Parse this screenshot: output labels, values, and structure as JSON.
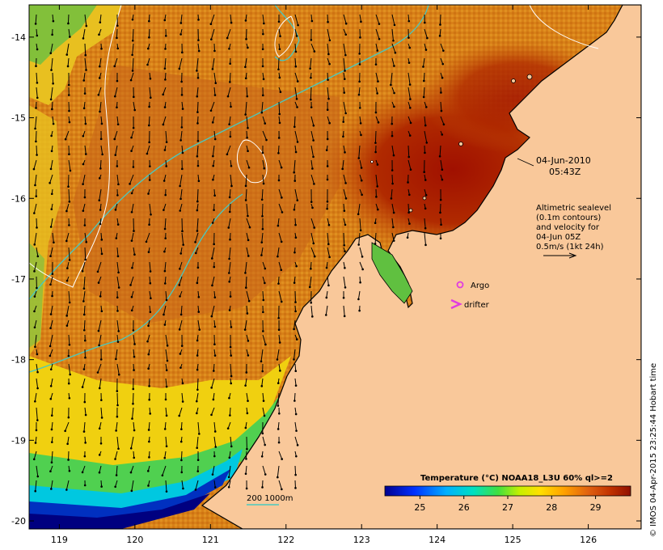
{
  "map": {
    "lon_range": [
      118.6,
      126.7
    ],
    "lat_range": [
      -20.1,
      -13.6
    ],
    "lon_ticks": [
      119,
      120,
      121,
      122,
      123,
      124,
      125,
      126
    ],
    "lat_ticks": [
      -14,
      -15,
      -16,
      -17,
      -18,
      -19,
      -20
    ],
    "lon_tick_labels": [
      "119",
      "120",
      "121",
      "122",
      "123",
      "124",
      "125",
      "126"
    ],
    "lat_tick_labels": [
      "-14",
      "-15",
      "-16",
      "-17",
      "-18",
      "-19",
      "-20"
    ]
  },
  "annotations": {
    "date": "04-Jun-2010",
    "time": "05:43Z",
    "altimetry_lines": [
      "Altimetric sealevel",
      "(0.1m contours)",
      "and velocity for",
      "04-Jun 05Z",
      "0.5m/s (1kt 24h)"
    ],
    "argo_label": "Argo",
    "drifter_label": "drifter",
    "depth_label": "200  1000m"
  },
  "colorbar": {
    "title": "Temperature (°C) NOAA18_L3U 60% ql>=2",
    "range": [
      24.2,
      29.8
    ],
    "tick_values": [
      25,
      26,
      27,
      28,
      29
    ],
    "tick_labels": [
      "25",
      "26",
      "27",
      "28",
      "29"
    ]
  },
  "credit": "© IMOS 04-Apr-2015 23:25:44 Hobart time",
  "colors": {
    "land": "#f9c89a",
    "argo": "#e03ce0",
    "drifter": "#e03ce0",
    "isobath_200": "#49c9c0",
    "sealevel_contour": "#ffffff"
  }
}
